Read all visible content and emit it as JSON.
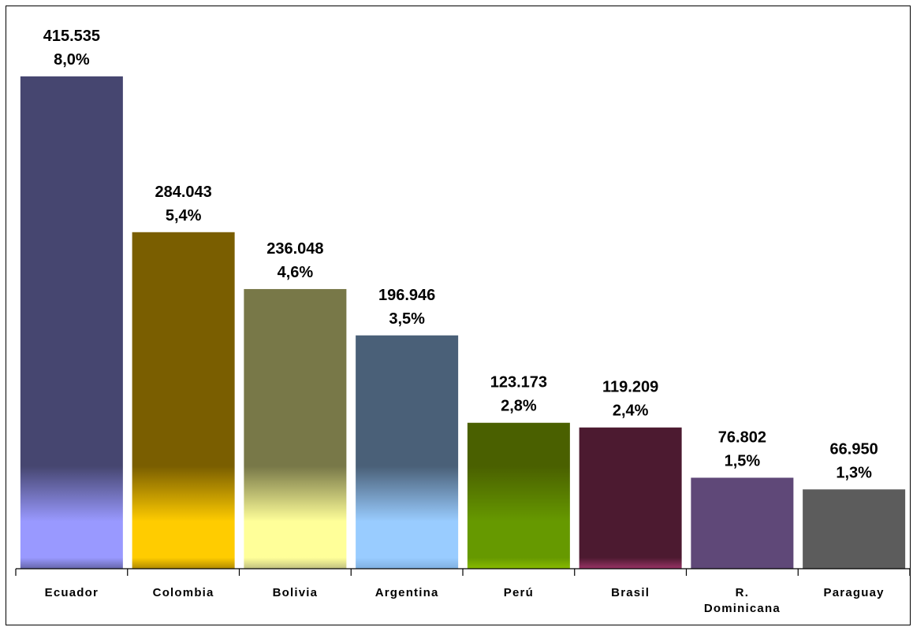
{
  "chart_data": {
    "type": "bar",
    "categories": [
      [
        "Ecuador"
      ],
      [
        "Colombia"
      ],
      [
        "Bolivia"
      ],
      [
        "Argentina"
      ],
      [
        "Perú"
      ],
      [
        "Brasil"
      ],
      [
        "R.",
        "Dominicana"
      ],
      [
        "Paraguay"
      ]
    ],
    "values": [
      415535,
      284043,
      236048,
      196946,
      123173,
      119209,
      76802,
      66950
    ],
    "value_labels": [
      "415.535",
      "284.043",
      "236.048",
      "196.946",
      "123.173",
      "119.209",
      "76.802",
      "66.950"
    ],
    "percent_labels": [
      "8,0%",
      "5,4%",
      "4,6%",
      "3,5%",
      "2,8%",
      "2,4%",
      "1,5%",
      "1,3%"
    ],
    "colors": [
      {
        "top": "#464670",
        "bottom": "#9999ff",
        "base": "#6666aa"
      },
      {
        "top": "#7a5e00",
        "bottom": "#ffcc00",
        "base": "#b08a00"
      },
      {
        "top": "#787848",
        "bottom": "#ffff99",
        "base": "#c0c080"
      },
      {
        "top": "#4a6078",
        "bottom": "#99ccff",
        "base": "#80b0e0"
      },
      {
        "top": "#4a6000",
        "bottom": "#669900",
        "base": "#88bb00"
      },
      {
        "top": "#4c1a30",
        "bottom": "#4c1a30",
        "base": "#993366"
      },
      {
        "top": "#5f4878",
        "bottom": "#5f4878",
        "base": "#5f4878"
      },
      {
        "top": "#5c5c5c",
        "bottom": "#5c5c5c",
        "base": "#5c5c5c"
      }
    ],
    "ylim": [
      0,
      430000
    ],
    "grid": false,
    "legend": "none",
    "xlabel": "",
    "ylabel": ""
  }
}
